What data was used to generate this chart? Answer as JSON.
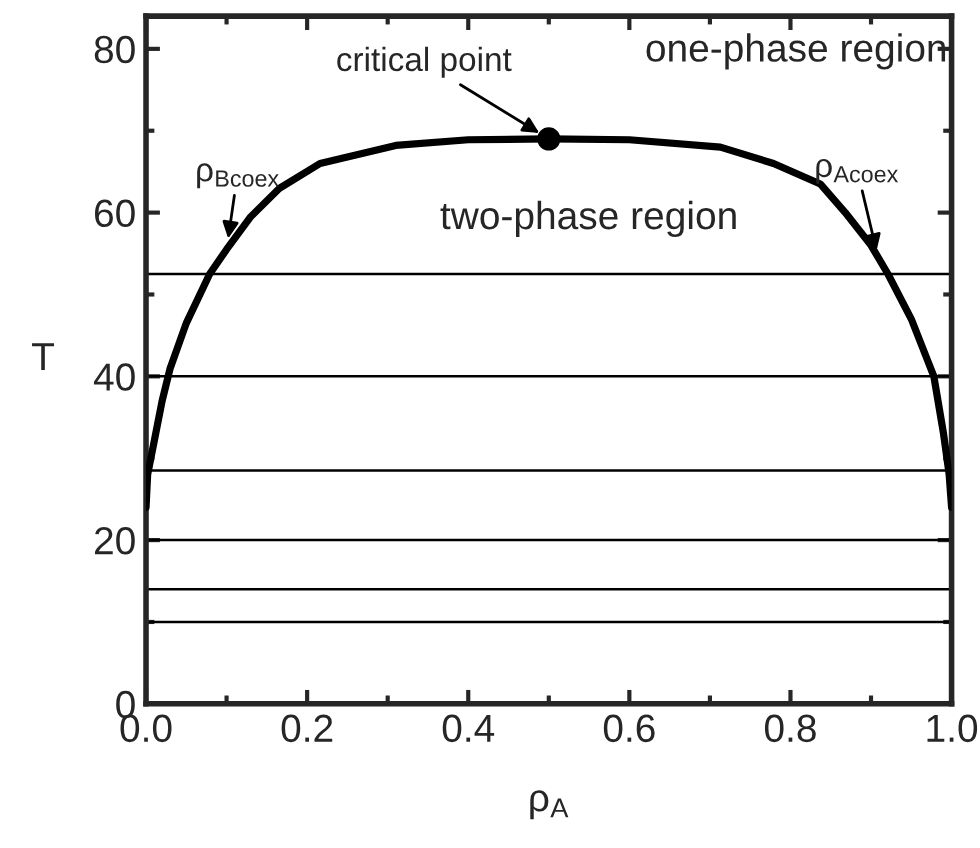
{
  "chart_data": {
    "type": "line",
    "xlabel": "ρ$_{A}$",
    "ylabel": "T",
    "series": [
      {
        "color": "#000000",
        "x": [
          0.0,
          0.002,
          0.01,
          0.02,
          0.03,
          0.05,
          0.079,
          0.1,
          0.13,
          0.166,
          0.216,
          0.31,
          0.4,
          0.5,
          0.6,
          0.713,
          0.779,
          0.837,
          0.868,
          0.9,
          0.921,
          0.95,
          0.97,
          0.978,
          0.99,
          0.997,
          1.0
        ],
        "values": [
          24,
          28,
          32,
          37,
          41,
          46.5,
          52.5,
          55.5,
          59.5,
          63,
          66,
          68.2,
          68.9,
          69,
          68.9,
          68,
          66,
          63.5,
          60,
          56,
          52.5,
          47,
          42,
          40,
          33,
          28,
          24
        ]
      },
      {
        "type": "scatter",
        "color": "#000000",
        "marker": "circle",
        "x": [
          0.5
        ],
        "values": [
          69
        ]
      }
    ],
    "ref_lines": [
      {
        "axis": "y",
        "value": 52.5,
        "color": "#000000"
      },
      {
        "axis": "y",
        "value": 40,
        "color": "#000000"
      },
      {
        "axis": "y",
        "value": 28.5,
        "color": "#000000"
      },
      {
        "axis": "y",
        "value": 20,
        "color": "#000000"
      },
      {
        "axis": "y",
        "value": 14,
        "color": "#000000"
      },
      {
        "axis": "y",
        "value": 10,
        "color": "#000000"
      }
    ],
    "annotations": [
      "one-phase region",
      "two-phase region",
      {
        "text": "critical point",
        "x": 0.5,
        "y": 69
      },
      {
        "text": "ρ$_{Bcoex}$",
        "x": 0.1,
        "y": 55.5
      },
      {
        "text": "ρ$_{Acoex}$",
        "x": 0.91,
        "y": 54
      }
    ],
    "xlim": [
      0,
      1
    ],
    "ylim": [
      0,
      84
    ],
    "xticks": [
      {
        "value": 0,
        "label": "0.0"
      },
      {
        "value": 0.2,
        "label": "0.2"
      },
      {
        "value": 0.4,
        "label": "0.4"
      },
      {
        "value": 0.6,
        "label": "0.6"
      },
      {
        "value": 0.8,
        "label": "0.8"
      },
      {
        "value": 1,
        "label": "1.0"
      }
    ],
    "yticks": [
      0,
      20,
      40,
      60,
      80
    ],
    "grid": false
  }
}
